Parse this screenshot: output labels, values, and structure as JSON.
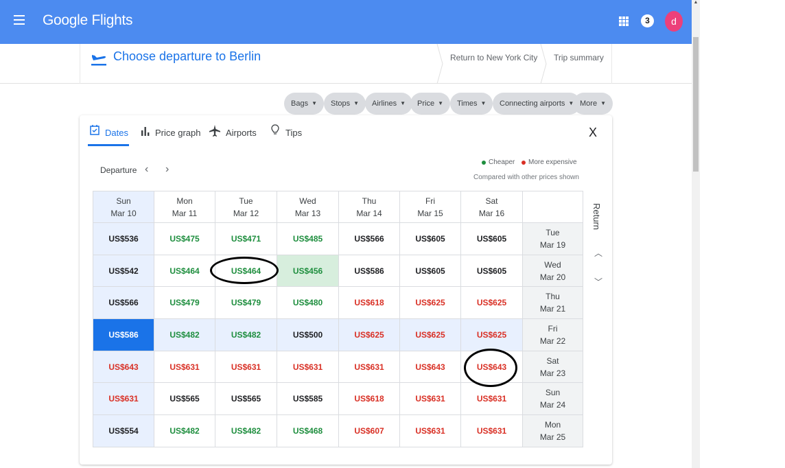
{
  "header": {
    "brand": "Google Flights",
    "notification_count": "3",
    "avatar_letter": "d",
    "bar_color": "#4c8bf0"
  },
  "steps": {
    "current": "Choose departure to Berlin",
    "next": "Return to New York City",
    "summary": "Trip summary"
  },
  "filters": [
    {
      "label": "Bags"
    },
    {
      "label": "Stops"
    },
    {
      "label": "Airlines"
    },
    {
      "label": "Price"
    },
    {
      "label": "Times"
    },
    {
      "label": "Connecting airports"
    },
    {
      "label": "More"
    }
  ],
  "tabs": [
    {
      "label": "Dates",
      "icon": "calendar-icon",
      "active": true
    },
    {
      "label": "Price graph",
      "icon": "bar-chart-icon"
    },
    {
      "label": "Airports",
      "icon": "airplane-icon"
    },
    {
      "label": "Tips",
      "icon": "lightbulb-icon"
    }
  ],
  "close_label": "X",
  "grid": {
    "departure_label": "Departure",
    "return_label": "Return",
    "legend": {
      "cheaper": "Cheaper",
      "expensive": "More expensive",
      "note": "Compared with other prices shown",
      "cheaper_color": "#1e8e3e",
      "expensive_color": "#d93025"
    },
    "departure_days": [
      {
        "dow": "Sun",
        "date": "Mar 10"
      },
      {
        "dow": "Mon",
        "date": "Mar 11"
      },
      {
        "dow": "Tue",
        "date": "Mar 12"
      },
      {
        "dow": "Wed",
        "date": "Mar 13"
      },
      {
        "dow": "Thu",
        "date": "Mar 14"
      },
      {
        "dow": "Fri",
        "date": "Mar 15"
      },
      {
        "dow": "Sat",
        "date": "Mar 16"
      }
    ],
    "rows": [
      {
        "dow": "Tue",
        "date": "Mar 19",
        "prices": [
          [
            "US$536",
            "n"
          ],
          [
            "US$475",
            "c"
          ],
          [
            "US$471",
            "c"
          ],
          [
            "US$485",
            "c"
          ],
          [
            "US$566",
            "n"
          ],
          [
            "US$605",
            "n"
          ],
          [
            "US$605",
            "n"
          ]
        ]
      },
      {
        "dow": "Wed",
        "date": "Mar 20",
        "prices": [
          [
            "US$542",
            "n"
          ],
          [
            "US$464",
            "c"
          ],
          [
            "US$464",
            "c"
          ],
          [
            "US$456",
            "c"
          ],
          [
            "US$586",
            "n"
          ],
          [
            "US$605",
            "n"
          ],
          [
            "US$605",
            "n"
          ]
        ]
      },
      {
        "dow": "Thu",
        "date": "Mar 21",
        "prices": [
          [
            "US$566",
            "n"
          ],
          [
            "US$479",
            "c"
          ],
          [
            "US$479",
            "c"
          ],
          [
            "US$480",
            "c"
          ],
          [
            "US$618",
            "e"
          ],
          [
            "US$625",
            "e"
          ],
          [
            "US$625",
            "e"
          ]
        ]
      },
      {
        "dow": "Fri",
        "date": "Mar 22",
        "prices": [
          [
            "US$586",
            "n"
          ],
          [
            "US$482",
            "c"
          ],
          [
            "US$482",
            "c"
          ],
          [
            "US$500",
            "n"
          ],
          [
            "US$625",
            "e"
          ],
          [
            "US$625",
            "e"
          ],
          [
            "US$625",
            "e"
          ]
        ]
      },
      {
        "dow": "Sat",
        "date": "Mar 23",
        "prices": [
          [
            "US$643",
            "e"
          ],
          [
            "US$631",
            "e"
          ],
          [
            "US$631",
            "e"
          ],
          [
            "US$631",
            "e"
          ],
          [
            "US$631",
            "e"
          ],
          [
            "US$643",
            "e"
          ],
          [
            "US$643",
            "e"
          ]
        ]
      },
      {
        "dow": "Sun",
        "date": "Mar 24",
        "prices": [
          [
            "US$631",
            "e"
          ],
          [
            "US$565",
            "n"
          ],
          [
            "US$565",
            "n"
          ],
          [
            "US$585",
            "n"
          ],
          [
            "US$618",
            "e"
          ],
          [
            "US$631",
            "e"
          ],
          [
            "US$631",
            "e"
          ]
        ]
      },
      {
        "dow": "Mon",
        "date": "Mar 25",
        "prices": [
          [
            "US$554",
            "n"
          ],
          [
            "US$482",
            "c"
          ],
          [
            "US$482",
            "c"
          ],
          [
            "US$468",
            "c"
          ],
          [
            "US$607",
            "e"
          ],
          [
            "US$631",
            "e"
          ],
          [
            "US$631",
            "e"
          ]
        ]
      }
    ]
  }
}
